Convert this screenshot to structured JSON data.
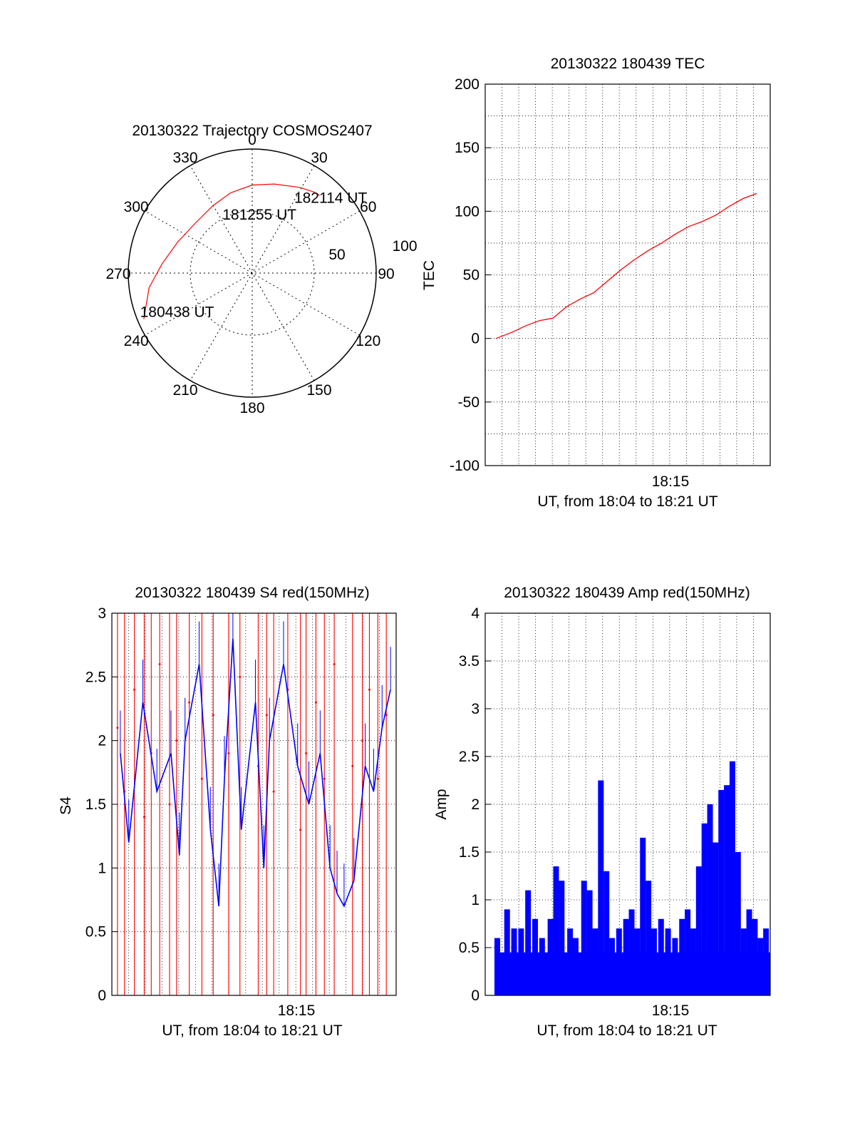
{
  "chart_data": [
    {
      "id": "trajectory",
      "type": "polar",
      "title": "20130322 Trajectory COSMOS2407",
      "angle_labels": [
        "0",
        "30",
        "60",
        "90",
        "120",
        "150",
        "180",
        "210",
        "240",
        "270",
        "300",
        "330"
      ],
      "radial_labels": [
        "50",
        "100"
      ],
      "rlim": [
        0,
        100
      ],
      "series": [
        {
          "color": "#ff0000",
          "points": [
            {
              "az": 247,
              "r": 95
            },
            {
              "az": 262,
              "r": 84
            },
            {
              "az": 276,
              "r": 73
            },
            {
              "az": 293,
              "r": 65
            },
            {
              "az": 312,
              "r": 61
            },
            {
              "az": 330,
              "r": 63
            },
            {
              "az": 345,
              "r": 67
            },
            {
              "az": 0,
              "r": 71
            },
            {
              "az": 14,
              "r": 74
            },
            {
              "az": 29,
              "r": 79
            },
            {
              "az": 37,
              "r": 82
            },
            {
              "az": 41,
              "r": 83
            }
          ]
        }
      ],
      "annotations": [
        {
          "text": "182114 UT",
          "az": 46,
          "r": 88
        },
        {
          "text": "181255 UT",
          "az": 7,
          "r": 48
        },
        {
          "text": "180438 UT",
          "az": 243,
          "r": 68
        }
      ]
    },
    {
      "id": "tec",
      "type": "line",
      "title": "20130322 180439 TEC",
      "ylabel": "TEC",
      "xlabel": "UT, from 18:04 to 18:21 UT",
      "ylim": [
        -100,
        200
      ],
      "yticks": [
        "-100",
        "-50",
        "0",
        "50",
        "100",
        "150",
        "200"
      ],
      "xtick_labels": [
        "18:15"
      ],
      "grid": true,
      "series": [
        {
          "color": "#ff0000",
          "x": [
            0.8,
            2,
            3,
            4,
            5,
            6,
            7,
            8,
            9,
            10,
            11,
            12,
            13,
            14,
            15,
            16,
            17,
            18,
            19,
            20
          ],
          "y": [
            0,
            5,
            10,
            14,
            16,
            25,
            31,
            36,
            45,
            54,
            62,
            69,
            75,
            82,
            88,
            92,
            97,
            104,
            110,
            114
          ]
        }
      ]
    },
    {
      "id": "s4",
      "type": "line",
      "title": "20130322 180439 S4 red(150MHz)",
      "ylabel": "S4",
      "xlabel": "UT, from 18:04 to 18:21 UT",
      "ylim": [
        0,
        3
      ],
      "yticks": [
        "0",
        "0.5",
        "1",
        "1.5",
        "2",
        "2.5",
        "3"
      ],
      "xtick_labels": [
        "18:15"
      ],
      "grid": true,
      "series": [
        {
          "color": "#0000ff",
          "x": [
            0.6,
            1.2,
            2.2,
            3.2,
            4.2,
            4.8,
            5.2,
            6.2,
            7.0,
            7.6,
            8.0,
            8.6,
            9.2,
            10.2,
            10.8,
            11.2,
            12.2,
            13.2,
            14.0,
            14.8,
            15.5,
            16.0,
            16.5,
            17.2,
            18.0,
            18.6,
            19.2,
            19.8
          ],
          "y": [
            1.9,
            1.2,
            2.3,
            1.6,
            1.9,
            1.1,
            2.0,
            2.6,
            1.3,
            0.7,
            1.7,
            2.8,
            1.3,
            2.3,
            1.0,
            2.0,
            2.6,
            1.8,
            1.5,
            1.9,
            1.0,
            0.8,
            0.7,
            0.9,
            1.8,
            1.6,
            2.1,
            2.4
          ]
        },
        {
          "color": "#ff0000",
          "x": [
            0.4,
            0.9,
            1.6,
            2.3,
            2.8,
            3.4,
            4.1,
            4.6,
            5.5,
            6.4,
            7.2,
            8.3,
            9.1,
            10.4,
            11.0,
            11.5,
            12.5,
            13.4,
            13.8,
            14.5,
            15.1,
            15.8,
            17.1,
            17.8,
            18.3,
            18.9,
            19.5
          ],
          "y": [
            2.1,
            1.6,
            2.4,
            1.4,
            1.9,
            2.6,
            1.5,
            2.0,
            2.3,
            1.7,
            2.2,
            1.9,
            2.5,
            1.8,
            2.2,
            1.6,
            2.4,
            1.3,
            1.9,
            2.3,
            1.7,
            2.6,
            1.8,
            2.0,
            2.4,
            1.7,
            2.2
          ]
        }
      ]
    },
    {
      "id": "amp",
      "type": "bar",
      "title": "20130322 180439 Amp red(150MHz)",
      "ylabel": "Amp",
      "xlabel": "UT, from 18:04 to 18:21 UT",
      "ylim": [
        0,
        4
      ],
      "yticks": [
        "0",
        "0.5",
        "1",
        "1.5",
        "2",
        "2.5",
        "3",
        "3.5",
        "4"
      ],
      "xtick_labels": [
        "18:15"
      ],
      "grid": true,
      "series": [
        {
          "color": "#0000ff",
          "x": [
            0.8,
            1.5,
            2.0,
            2.5,
            3.0,
            3.5,
            4.0,
            4.6,
            5.0,
            5.4,
            6.0,
            6.4,
            7.0,
            7.4,
            7.8,
            8.2,
            8.6,
            9.0,
            9.5,
            10.0,
            10.4,
            10.8,
            11.2,
            11.6,
            12.0,
            12.5,
            13.0,
            13.5,
            14.0,
            14.4,
            14.8,
            15.2,
            15.6,
            16.0,
            16.4,
            16.8,
            17.2,
            17.6,
            18.0,
            18.4,
            18.8,
            19.2,
            19.6,
            20.0
          ],
          "y": [
            0.6,
            0.9,
            0.7,
            0.7,
            1.1,
            0.8,
            0.6,
            0.8,
            1.35,
            1.2,
            0.7,
            0.6,
            1.2,
            1.1,
            0.7,
            2.25,
            1.3,
            0.6,
            0.7,
            0.8,
            0.9,
            0.7,
            1.65,
            1.2,
            0.7,
            0.8,
            0.7,
            0.6,
            0.8,
            0.9,
            0.7,
            1.35,
            1.8,
            2.0,
            1.6,
            2.15,
            2.2,
            2.45,
            1.5,
            0.7,
            0.9,
            0.8,
            0.6,
            0.7
          ]
        }
      ]
    }
  ]
}
